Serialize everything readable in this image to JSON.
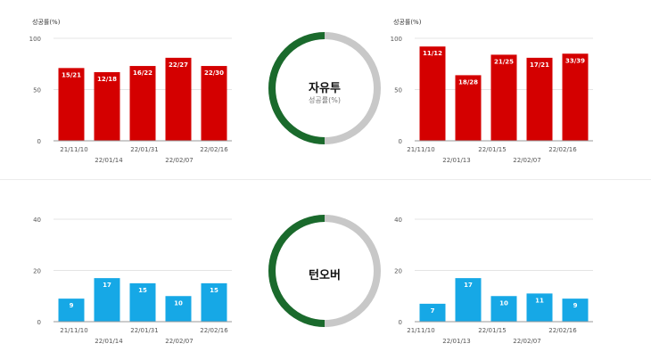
{
  "colors": {
    "fail_ring": "#c8c8c8",
    "success_ring": "#1a6a2c",
    "grid": "#e4e4e4",
    "axis": "#999999",
    "tick_text": "#555555"
  },
  "rings": [
    {
      "title": "자유투",
      "subtitle": "성공률(%)"
    },
    {
      "title": "턴오버",
      "subtitle": ""
    }
  ],
  "chart_data": [
    {
      "type": "bar",
      "title": "성공률(%)",
      "categories": [
        "21/11/10",
        "22/01/14",
        "22/01/31",
        "22/02/07",
        "22/02/16"
      ],
      "values": [
        71,
        67,
        73,
        81,
        73
      ],
      "data_labels": [
        "15/21",
        "12/18",
        "16/22",
        "22/27",
        "22/30"
      ],
      "ylim": [
        0,
        100
      ],
      "yticks": [
        0,
        50,
        100
      ],
      "color": "#d40000",
      "grid": true
    },
    {
      "type": "bar",
      "title": "성공률(%)",
      "categories": [
        "21/11/10",
        "22/01/13",
        "22/01/15",
        "22/02/07",
        "22/02/16"
      ],
      "values": [
        92,
        64,
        84,
        81,
        85
      ],
      "data_labels": [
        "11/12",
        "18/28",
        "21/25",
        "17/21",
        "33/39"
      ],
      "ylim": [
        0,
        100
      ],
      "yticks": [
        0,
        50,
        100
      ],
      "color": "#d40000",
      "grid": true
    },
    {
      "type": "bar",
      "title": "",
      "categories": [
        "21/11/10",
        "22/01/14",
        "22/01/31",
        "22/02/07",
        "22/02/16"
      ],
      "values": [
        9,
        17,
        15,
        10,
        15
      ],
      "data_labels": [
        "9",
        "17",
        "15",
        "10",
        "15"
      ],
      "ylim": [
        0,
        40
      ],
      "yticks": [
        0,
        20,
        40
      ],
      "color": "#16a8e6",
      "grid": true
    },
    {
      "type": "bar",
      "title": "",
      "categories": [
        "21/11/10",
        "22/01/13",
        "22/01/15",
        "22/02/07",
        "22/02/16"
      ],
      "values": [
        7,
        17,
        10,
        11,
        9
      ],
      "data_labels": [
        "7",
        "17",
        "10",
        "11",
        "9"
      ],
      "ylim": [
        0,
        40
      ],
      "yticks": [
        0,
        20,
        40
      ],
      "color": "#16a8e6",
      "grid": true
    }
  ]
}
